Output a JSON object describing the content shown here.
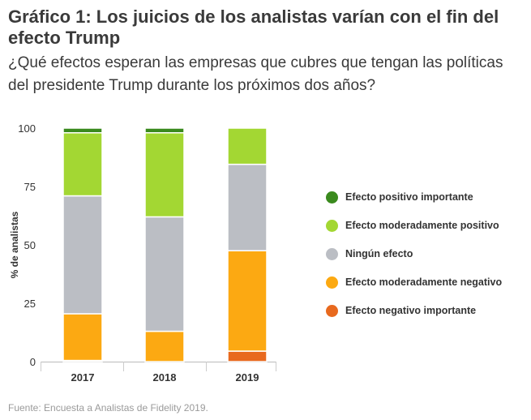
{
  "title": "Gráfico 1: Los juicios de los analistas varían con el fin del efecto Trump",
  "subtitle": "¿Qué efectos esperan las empresas que cubres que tengan las políticas del presidente Trump durante los próximos dos años?",
  "source": "Fuente: Encuesta a Analistas de Fidelity 2019.",
  "chart_data": {
    "type": "bar",
    "stacked": true,
    "categories": [
      "2017",
      "2018",
      "2019"
    ],
    "ylabel": "% de analistas",
    "xlabel": "",
    "ylim": [
      0,
      100
    ],
    "yticks": [
      "0",
      "25",
      "50",
      "75",
      "100"
    ],
    "legend_position": "right",
    "series": [
      {
        "name": "Efecto negativo importante",
        "color": "#e8691e",
        "values": [
          0.5,
          0,
          4.5
        ]
      },
      {
        "name": "Efecto moderadamente negativo",
        "color": "#fca912",
        "values": [
          20,
          13,
          43
        ]
      },
      {
        "name": "Ningún efecto",
        "color": "#bbbec4",
        "values": [
          50.5,
          49,
          37
        ]
      },
      {
        "name": "Efecto moderadamente positivo",
        "color": "#a3d733",
        "values": [
          27,
          36,
          15.5
        ]
      },
      {
        "name": "Efecto positivo importante",
        "color": "#3a8a1e",
        "values": [
          2,
          2,
          0
        ]
      }
    ]
  }
}
